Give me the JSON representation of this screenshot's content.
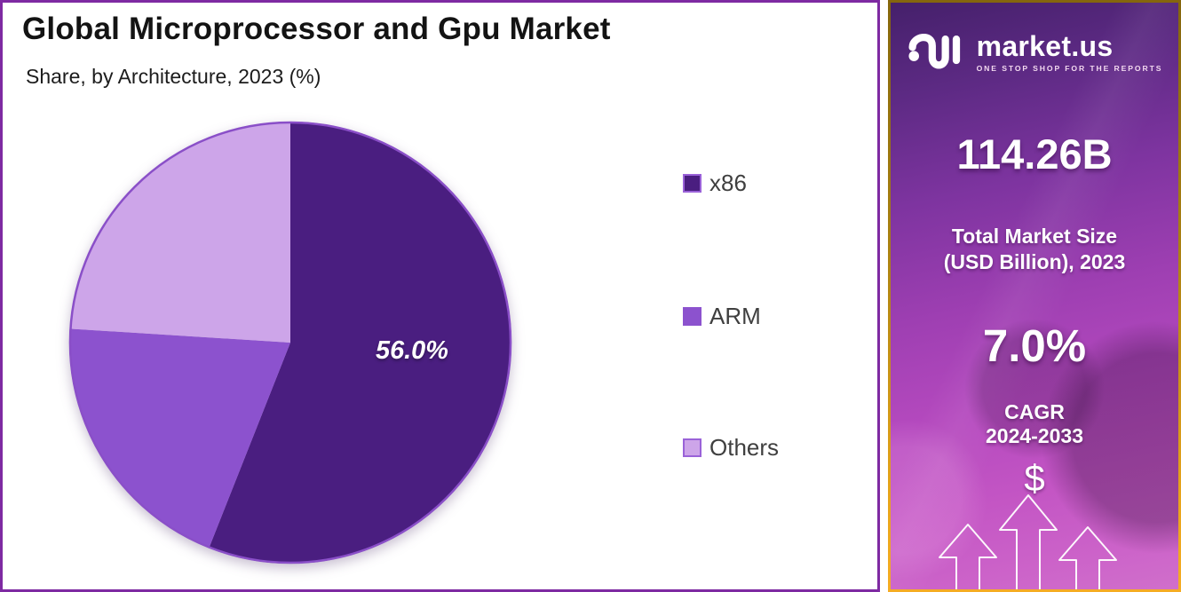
{
  "header": {
    "title": "Global Microprocessor and Gpu Market",
    "subtitle": "Share, by Architecture, 2023 (%)"
  },
  "chart_data": {
    "type": "pie",
    "title": "Global Microprocessor and Gpu Market",
    "subtitle": "Share, by Architecture, 2023 (%)",
    "unit": "%",
    "year": "2023",
    "labels": [
      "x86",
      "ARM",
      "Others"
    ],
    "values": [
      56.0,
      20.0,
      24.0
    ],
    "colors": [
      "#4A1E80",
      "#8C52CE",
      "#CDA5E9"
    ],
    "rim_color": "#8A4FC8",
    "data_label": "56.0%",
    "labeled_slice": "x86",
    "start_angle_deg": 0,
    "direction": "clockwise",
    "legend_position": "right"
  },
  "legend": {
    "items": [
      {
        "label": "x86",
        "color": "#4A1E80",
        "border": "#9A62D8"
      },
      {
        "label": "ARM",
        "color": "#8C52CE",
        "border": "#8C52CE"
      },
      {
        "label": "Others",
        "color": "#CDA5E9",
        "border": "#9A62D8"
      }
    ]
  },
  "info_panel": {
    "logo": {
      "brand": "market.us",
      "tagline": "ONE STOP SHOP FOR THE REPORTS"
    },
    "market_size_value": "114.26B",
    "market_size_label_line1": "Total Market Size",
    "market_size_label_line2": "(USD Billion), 2023",
    "cagr_value": "7.0%",
    "cagr_label": "CAGR",
    "cagr_period": "2024-2033",
    "dollar_symbol": "$"
  },
  "colors": {
    "chart_border": "#7E2AA2",
    "panel_border_gold": "#E8A41C",
    "panel_gradient_top": "#45206B",
    "panel_gradient_bottom": "#D06FCB",
    "title_text": "#131313",
    "legend_text": "#3F3F3F"
  }
}
